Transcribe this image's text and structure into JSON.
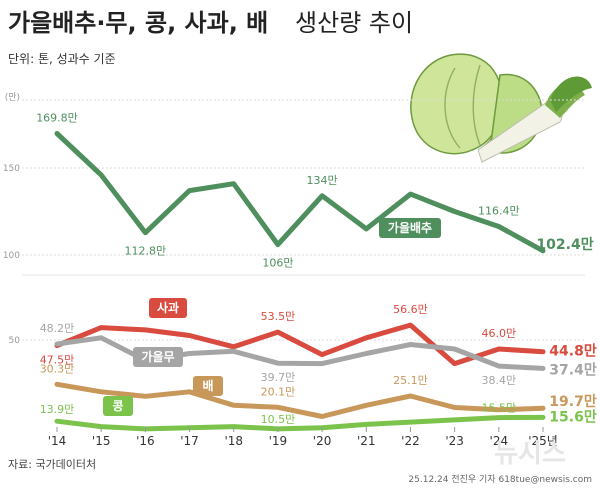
{
  "header": {
    "title_bold": "가을배추·무, 콩, 사과, 배",
    "title_regular": "생산량 추이",
    "unit_note": "단위: 톤, 성과수 기준"
  },
  "footer": {
    "source": "자료: 국가데이터처",
    "credit": "25.12.24 전진우 기자 618tue@newsis.com",
    "watermark": "뉴시스"
  },
  "colors": {
    "cabbage": "#4e8f5d",
    "apple": "#d94a3f",
    "radish": "#a5a5a5",
    "pear": "#c8975a",
    "bean": "#7cc34c",
    "background": "#ffffff"
  },
  "chart_data": {
    "type": "line",
    "x": [
      "'14",
      "'15",
      "'16",
      "'17",
      "'18",
      "'19",
      "'20",
      "'21",
      "'22",
      "'23",
      "'24",
      "'25년"
    ],
    "top_panel": {
      "ylabel": "(만)",
      "yticks": [
        100,
        150
      ],
      "yrange": [
        100,
        175
      ],
      "series": [
        {
          "name": "가을배추",
          "color": "#4e8f5d",
          "values": [
            169.8,
            146,
            112.8,
            137,
            141,
            106,
            134,
            115,
            135,
            125,
            116.4,
            102.4
          ],
          "labels": {
            "0": "169.8만",
            "2": "112.8만",
            "5": "106만",
            "6": "134만",
            "10": "116.4만",
            "11": "102.4만"
          }
        }
      ]
    },
    "bottom_panel": {
      "yticks": [
        50
      ],
      "yrange": [
        10,
        62
      ],
      "series": [
        {
          "name": "사과",
          "color": "#d94a3f",
          "values": [
            47.5,
            55.5,
            54.5,
            52,
            47,
            53.5,
            43.5,
            51,
            56.6,
            39.5,
            46.0,
            44.8
          ],
          "labels": {
            "0": "47.5만",
            "5": "53.5만",
            "8": "56.6만",
            "10": "46.0만",
            "11": "44.8만"
          }
        },
        {
          "name": "가을무",
          "color": "#a5a5a5",
          "values": [
            48.2,
            51,
            41,
            44,
            45,
            39.7,
            39.5,
            44,
            48,
            46,
            38.4,
            37.4
          ],
          "labels": {
            "0": "48.2만",
            "5": "39.7만",
            "10": "38.4만",
            "11": "37.4만"
          }
        },
        {
          "name": "배",
          "color": "#c8975a",
          "values": [
            30.3,
            27,
            25,
            27,
            21,
            20.1,
            16,
            21,
            25.1,
            20,
            19,
            19.7
          ],
          "labels": {
            "0": "30.3만",
            "5": "20.1만",
            "8": "25.1만",
            "11": "19.7만"
          }
        },
        {
          "name": "콩",
          "color": "#7cc34c",
          "values": [
            13.9,
            11.5,
            10.5,
            11,
            11.5,
            10.5,
            11,
            12.5,
            13.5,
            14.5,
            15.5,
            15.6
          ],
          "labels": {
            "0": "13.9만",
            "5": "10.5만",
            "10": "15.5만",
            "11": "15.6만"
          }
        }
      ]
    },
    "series_tags": [
      "가을배추",
      "사과",
      "가을무",
      "배",
      "콩"
    ],
    "grid": "horizontal"
  }
}
